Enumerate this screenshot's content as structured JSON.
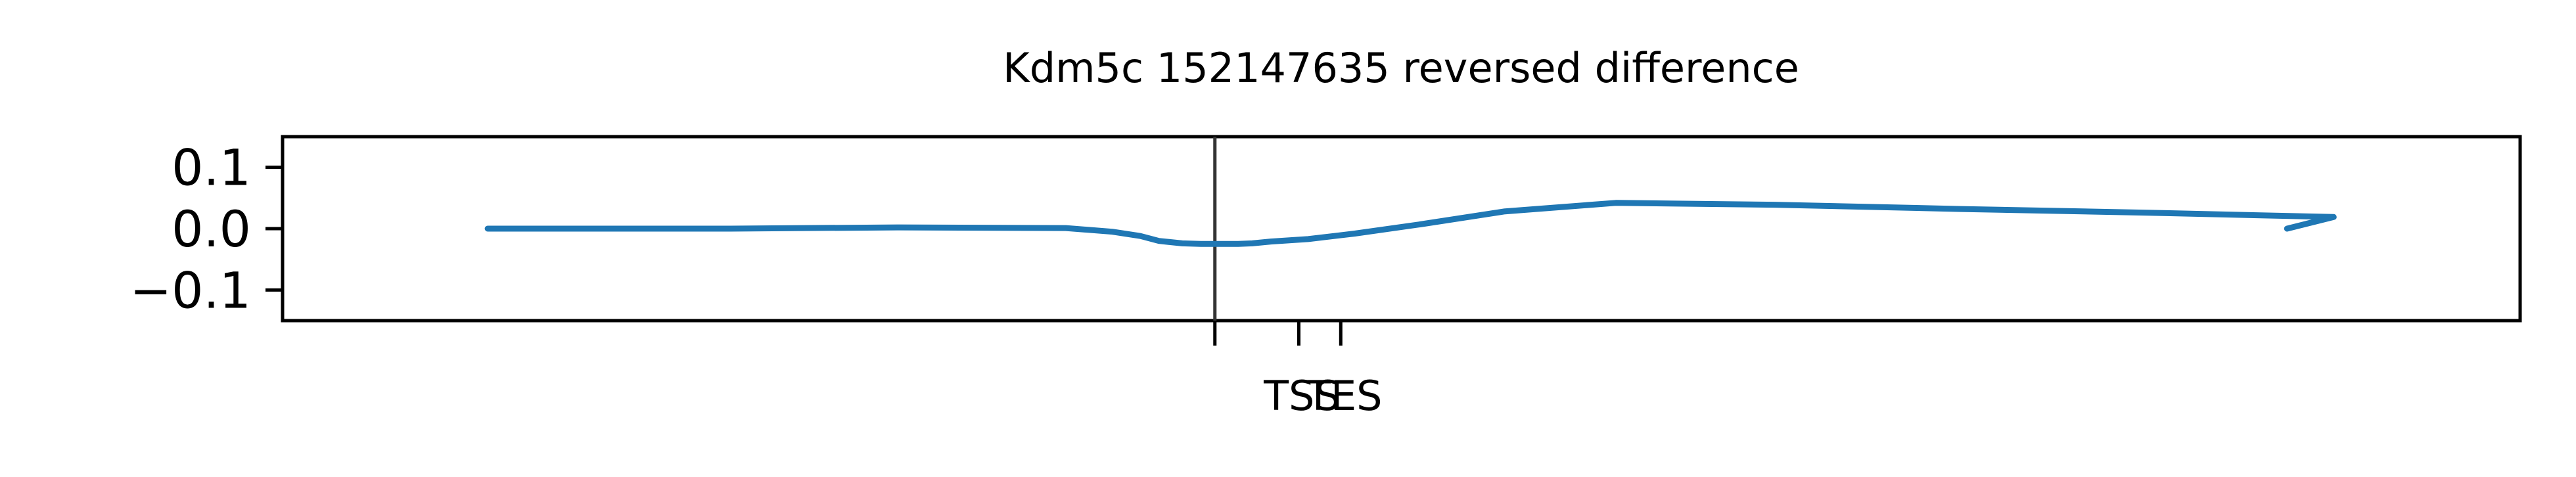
{
  "chart_data": {
    "type": "line",
    "title": "Kdm5c 152147635 reversed difference",
    "xlabel": "",
    "ylabel": "",
    "xlim": [
      -1000,
      1400
    ],
    "ylim": [
      -0.15,
      0.15
    ],
    "grid": false,
    "y_ticks": [
      {
        "value": 0.1,
        "label": "0.1"
      },
      {
        "value": 0.0,
        "label": "0.0"
      },
      {
        "value": -0.1,
        "label": "−0.1"
      }
    ],
    "x_ticks": [
      {
        "value": 0,
        "label": ""
      },
      {
        "value": 90,
        "label": "TSS"
      },
      {
        "value": 135,
        "label": "TES"
      }
    ],
    "vline_x": 0,
    "series": [
      {
        "color": "#1f77b4",
        "x": [
          -780,
          -520,
          -340,
          -160,
          -110,
          -80,
          -60,
          -35,
          -15,
          0,
          25,
          40,
          60,
          100,
          150,
          220,
          310,
          430,
          600,
          800,
          1000,
          1200,
          1150
        ],
        "y": [
          0.0,
          0.0,
          0.002,
          0.001,
          -0.005,
          -0.012,
          -0.02,
          -0.024,
          -0.025,
          -0.025,
          -0.025,
          -0.024,
          -0.021,
          -0.017,
          -0.008,
          0.007,
          0.028,
          0.042,
          0.039,
          0.032,
          0.026,
          0.019,
          0.0
        ]
      }
    ]
  },
  "colors": {
    "line": "#1f77b4",
    "axes": "#000000",
    "vline": "#333333"
  }
}
